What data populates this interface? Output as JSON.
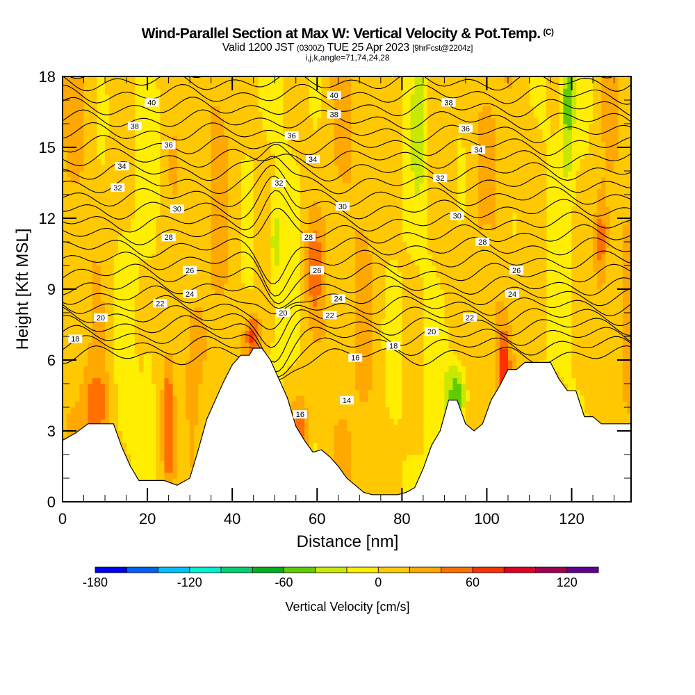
{
  "header": {
    "title": "Wind-Parallel Section at Max W: Vertical Velocity & Pot.Temp.",
    "copyright": "(C)",
    "valid_prefix": "Valid 1200 JST",
    "utc": "(0300Z)",
    "valid_date": "TUE 25 Apr 2023",
    "forecast": "[9hrFcst@2204z]",
    "indices": "i,j,k,angle=71,74,24,28"
  },
  "chart_data": {
    "type": "heatmap",
    "title": "Wind-Parallel Section at Max W: Vertical Velocity & Pot.Temp.",
    "xlabel": "Distance [nm]",
    "ylabel": "Height [Kft MSL]",
    "xlim": [
      0,
      134
    ],
    "ylim": [
      0,
      18
    ],
    "xticks": [
      0,
      20,
      40,
      60,
      80,
      100,
      120
    ],
    "yticks": [
      0,
      3,
      6,
      9,
      12,
      15,
      18
    ],
    "grid": false,
    "colorbar": {
      "label": "Vertical Velocity [cm/s]",
      "placement": "bottom",
      "levels": [
        -180,
        -160,
        -140,
        -120,
        -100,
        -80,
        -60,
        -40,
        -20,
        0,
        20,
        40,
        60,
        80,
        100,
        120,
        140
      ],
      "tick_labels": [
        -180,
        -120,
        -60,
        0,
        60,
        120
      ],
      "colors": [
        "#0000f0",
        "#0060f8",
        "#00c0ff",
        "#00f0d0",
        "#00d070",
        "#00b020",
        "#60cc00",
        "#c8e800",
        "#ffee00",
        "#ffc800",
        "#ffa800",
        "#ff7000",
        "#ff3000",
        "#e00020",
        "#a00050",
        "#600090"
      ]
    },
    "contour_field": "Potential Temperature (isentropes)",
    "contour_labels": [
      {
        "value": 40,
        "x": 21,
        "y": 16.9
      },
      {
        "value": 38,
        "x": 17,
        "y": 15.9
      },
      {
        "value": 36,
        "x": 25,
        "y": 15.1
      },
      {
        "value": 34,
        "x": 14,
        "y": 14.2
      },
      {
        "value": 32,
        "x": 13,
        "y": 13.3
      },
      {
        "value": 30,
        "x": 27,
        "y": 12.4
      },
      {
        "value": 28,
        "x": 25,
        "y": 11.2
      },
      {
        "value": 26,
        "x": 30,
        "y": 9.8
      },
      {
        "value": 24,
        "x": 30,
        "y": 8.8
      },
      {
        "value": 22,
        "x": 23,
        "y": 8.4
      },
      {
        "value": 20,
        "x": 9,
        "y": 7.8
      },
      {
        "value": 18,
        "x": 3,
        "y": 6.9
      },
      {
        "value": 40,
        "x": 64,
        "y": 17.2
      },
      {
        "value": 38,
        "x": 64,
        "y": 16.4
      },
      {
        "value": 36,
        "x": 54,
        "y": 15.5
      },
      {
        "value": 34,
        "x": 59,
        "y": 14.5
      },
      {
        "value": 32,
        "x": 51,
        "y": 13.5
      },
      {
        "value": 30,
        "x": 66,
        "y": 12.5
      },
      {
        "value": 28,
        "x": 58,
        "y": 11.2
      },
      {
        "value": 26,
        "x": 60,
        "y": 9.8
      },
      {
        "value": 24,
        "x": 65,
        "y": 8.6
      },
      {
        "value": 22,
        "x": 63,
        "y": 7.9
      },
      {
        "value": 20,
        "x": 52,
        "y": 8.0
      },
      {
        "value": 18,
        "x": 78,
        "y": 6.6
      },
      {
        "value": 16,
        "x": 69,
        "y": 6.1
      },
      {
        "value": 16,
        "x": 56,
        "y": 3.7
      },
      {
        "value": 14,
        "x": 67,
        "y": 4.3
      },
      {
        "value": 38,
        "x": 91,
        "y": 16.9
      },
      {
        "value": 36,
        "x": 95,
        "y": 15.8
      },
      {
        "value": 34,
        "x": 98,
        "y": 14.9
      },
      {
        "value": 32,
        "x": 89,
        "y": 13.7
      },
      {
        "value": 30,
        "x": 93,
        "y": 12.1
      },
      {
        "value": 28,
        "x": 99,
        "y": 11.0
      },
      {
        "value": 26,
        "x": 107,
        "y": 9.8
      },
      {
        "value": 24,
        "x": 106,
        "y": 8.8
      },
      {
        "value": 22,
        "x": 96,
        "y": 7.8
      },
      {
        "value": 20,
        "x": 87,
        "y": 7.2
      }
    ],
    "terrain_height_kft": {
      "x": [
        0,
        3,
        6,
        9,
        12,
        14,
        16,
        18,
        20,
        22,
        24,
        27,
        30,
        32,
        34,
        36,
        38,
        40,
        42,
        44,
        45,
        47,
        49,
        51,
        53,
        55,
        57,
        59,
        61,
        63,
        65,
        67,
        69,
        71,
        73,
        75,
        77,
        79,
        81,
        83,
        85,
        87,
        89,
        91,
        93,
        95,
        97,
        99,
        101,
        103,
        105,
        107,
        109,
        111,
        113,
        115,
        117,
        119,
        121,
        123,
        125,
        127,
        129,
        134
      ],
      "y": [
        2.6,
        2.9,
        3.3,
        3.3,
        3.3,
        2.3,
        1.5,
        0.9,
        0.9,
        0.9,
        0.9,
        0.7,
        1.0,
        2.2,
        3.5,
        4.3,
        5.1,
        5.8,
        6.2,
        6.2,
        6.5,
        6.5,
        6.0,
        5.2,
        4.4,
        3.2,
        2.6,
        2.1,
        2.2,
        1.9,
        1.5,
        1.0,
        0.7,
        0.4,
        0.3,
        0.3,
        0.3,
        0.3,
        0.4,
        0.6,
        1.4,
        2.4,
        3.0,
        4.3,
        4.3,
        3.3,
        3.0,
        3.3,
        4.3,
        4.9,
        5.6,
        5.6,
        5.9,
        5.9,
        5.9,
        5.9,
        5.2,
        4.7,
        4.7,
        3.6,
        3.6,
        3.3,
        3.3,
        3.3
      ]
    }
  }
}
